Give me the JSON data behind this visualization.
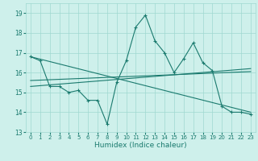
{
  "xlabel": "Humidex (Indice chaleur)",
  "x": [
    0,
    1,
    2,
    3,
    4,
    5,
    6,
    7,
    8,
    9,
    10,
    11,
    12,
    13,
    14,
    15,
    16,
    17,
    18,
    19,
    20,
    21,
    22,
    23
  ],
  "line1": [
    16.8,
    16.6,
    15.3,
    15.3,
    15.0,
    15.1,
    14.6,
    14.6,
    13.4,
    15.5,
    16.6,
    18.3,
    18.9,
    17.6,
    17.0,
    16.0,
    16.7,
    17.5,
    16.5,
    16.1,
    14.3,
    14.0,
    14.0,
    13.9
  ],
  "line2_x": [
    0,
    23
  ],
  "line2_y": [
    16.8,
    14.0
  ],
  "line3_x": [
    0,
    23
  ],
  "line3_y": [
    15.3,
    16.2
  ],
  "line4_x": [
    0,
    23
  ],
  "line4_y": [
    15.6,
    16.05
  ],
  "ylim": [
    13.0,
    19.5
  ],
  "xlim": [
    -0.5,
    23.5
  ],
  "yticks": [
    13,
    14,
    15,
    16,
    17,
    18,
    19
  ],
  "xticks": [
    0,
    1,
    2,
    3,
    4,
    5,
    6,
    7,
    8,
    9,
    10,
    11,
    12,
    13,
    14,
    15,
    16,
    17,
    18,
    19,
    20,
    21,
    22,
    23
  ],
  "color": "#1a7a6e",
  "bg_color": "#cef0eb",
  "grid_color": "#9fd8d0",
  "marker": "+"
}
